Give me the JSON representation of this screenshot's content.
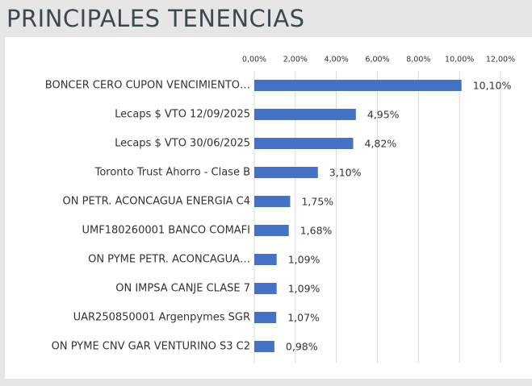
{
  "header": {
    "title": "PRINCIPALES TENENCIAS"
  },
  "chart_data": {
    "type": "barh",
    "categories": [
      "BONCER CERO CUPON VENCIMIENTO…",
      "Lecaps $ VTO 12/09/2025",
      "Lecaps $ VTO 30/06/2025",
      "Toronto Trust Ahorro - Clase B",
      "ON PETR. ACONCAGUA ENERGIA C4",
      "UMF180260001 BANCO COMAFI",
      "ON PYME PETR. ACONCAGUA…",
      "ON IMPSA CANJE CLASE 7",
      "UAR250850001 Argenpymes SGR",
      "ON PYME CNV GAR VENTURINO S3 C2"
    ],
    "values": [
      10.1,
      4.95,
      4.82,
      3.1,
      1.75,
      1.68,
      1.09,
      1.09,
      1.07,
      0.98
    ],
    "value_labels": [
      "10,10%",
      "4,95%",
      "4,82%",
      "3,10%",
      "1,75%",
      "1,68%",
      "1,09%",
      "1,09%",
      "1,07%",
      "0,98%"
    ],
    "color": "#4472c4",
    "xlim": [
      0,
      12
    ],
    "xticks": [
      {
        "value": 0,
        "label": "0,00%"
      },
      {
        "value": 2,
        "label": "2,00%"
      },
      {
        "value": 4,
        "label": "4,00%"
      },
      {
        "value": 6,
        "label": "6,00%"
      },
      {
        "value": 8,
        "label": "8,00%"
      },
      {
        "value": 10,
        "label": "10,00%"
      },
      {
        "value": 12,
        "label": "12,00%"
      }
    ],
    "grid": true
  }
}
